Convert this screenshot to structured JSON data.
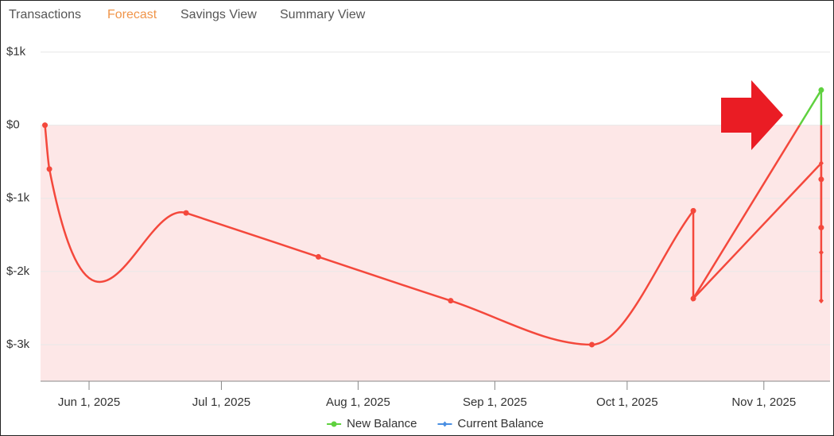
{
  "tabs": [
    "Transactions",
    "Forecast",
    "Savings View",
    "Summary View"
  ],
  "active_tab": 1,
  "active_tab_color": "#f0954a",
  "chart_data": {
    "type": "line",
    "xlim": [
      "2025-05-21",
      "2025-11-16"
    ],
    "xticks": [
      {
        "value": "2025-06-01",
        "label": "Jun 1, 2025"
      },
      {
        "value": "2025-07-01",
        "label": "Jul 1, 2025"
      },
      {
        "value": "2025-08-01",
        "label": "Aug 1, 2025"
      },
      {
        "value": "2025-09-01",
        "label": "Sep 1, 2025"
      },
      {
        "value": "2025-10-01",
        "label": "Oct 1, 2025"
      },
      {
        "value": "2025-11-01",
        "label": "Nov 1, 2025"
      }
    ],
    "ylim": [
      -3500,
      1250
    ],
    "yticks": [
      {
        "value": 1000,
        "label": "$1k"
      },
      {
        "value": 0,
        "label": "$0"
      },
      {
        "value": -1000,
        "label": "$-1k"
      },
      {
        "value": -2000,
        "label": "$-2k"
      },
      {
        "value": -3000,
        "label": "$-3k"
      }
    ],
    "grid": true,
    "negative_color": "#f4483c",
    "negative_fill": "#fde7e7",
    "legend": "bottom",
    "series": [
      {
        "name": "New Balance",
        "color": "#5fd13f",
        "marker": "circle",
        "x": [
          "2025-05-22",
          "2025-05-23",
          "2025-06-23",
          "2025-07-23",
          "2025-08-22",
          "2025-09-23",
          "2025-10-16",
          "2025-10-16",
          "2025-11-14",
          "2025-11-14",
          "2025-11-14"
        ],
        "values": [
          0,
          -600,
          -1200,
          -1800,
          -2400,
          -3000,
          -1170,
          -2370,
          480,
          -740,
          -1400
        ]
      },
      {
        "name": "Current Balance",
        "color": "#4a8fe2",
        "marker": "diamond",
        "x": [
          "2025-10-16",
          "2025-11-14",
          "2025-11-14",
          "2025-11-14"
        ],
        "values": [
          -2370,
          -520,
          -1740,
          -2400
        ]
      }
    ]
  }
}
